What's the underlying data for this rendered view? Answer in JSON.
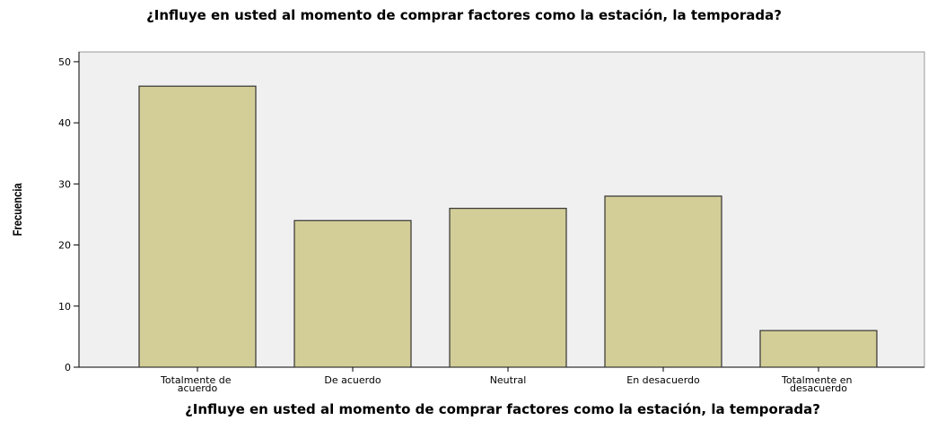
{
  "chart_data": {
    "type": "bar",
    "title": "¿Influye en usted al momento de comprar factores como la estación, la temporada?",
    "x_label": "¿Influye en usted al momento de comprar factores como la estación, la temporada?",
    "y_label": "Frecuencia",
    "categories": [
      "Totalmente de acuerdo",
      "De acuerdo",
      "Neutral",
      "En desacuerdo",
      "Totalmente en desacuerdo"
    ],
    "values": [
      46,
      24,
      26,
      28,
      6
    ],
    "color": "#d3ce97",
    "ylim": [
      0,
      51.6
    ],
    "yticks": [
      0,
      10,
      20,
      30,
      40,
      50
    ]
  }
}
